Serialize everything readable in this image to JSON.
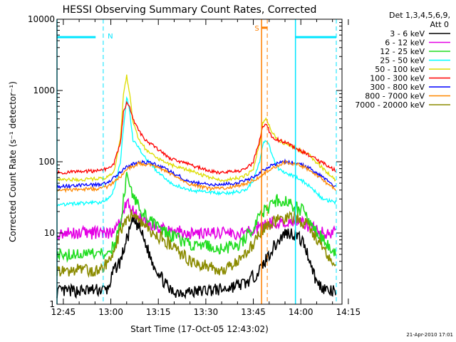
{
  "chart_data": {
    "type": "line",
    "title": "HESSI Observing Summary Count Rates, Corrected",
    "xlabel": "Start Time (17-Oct-05 12:43:02)",
    "ylabel": "Corrected Count Rate (s⁻¹ detector⁻¹)",
    "y_scale": "log",
    "ylim": [
      1,
      10000
    ],
    "xlim_min": [
      -2,
      88
    ],
    "x_ticks": [
      "12:45",
      "13:00",
      "13:15",
      "13:30",
      "13:45",
      "14:00",
      "14:15"
    ],
    "y_ticks": [
      "1",
      "10",
      "100",
      "1000",
      "10000"
    ],
    "legend_header": [
      "Det 1,3,4,5,6,9,",
      "Att 0"
    ],
    "legend_placement": "right",
    "series": [
      {
        "name": "3 - 6 keV",
        "color": "#000000",
        "x": [
          -2,
          14,
          16,
          18,
          20,
          22,
          24,
          26,
          28,
          32,
          34,
          38,
          42,
          46,
          50,
          54,
          58,
          62,
          66,
          70,
          72,
          74,
          76,
          78,
          80,
          84,
          86
        ],
        "y": [
          1.5,
          1.6,
          3,
          4,
          8,
          15,
          12,
          7,
          4,
          2,
          1.5,
          1.5,
          1.5,
          1.6,
          1.6,
          1.8,
          2,
          3,
          6,
          10,
          10,
          9,
          7,
          4,
          2,
          1.5,
          1.5
        ]
      },
      {
        "name": "6 - 12 keV",
        "color": "#e400e4",
        "x": [
          -2,
          14,
          16,
          18,
          20,
          22,
          24,
          28,
          32,
          40,
          50,
          56,
          62,
          66,
          70,
          74,
          78,
          82,
          86
        ],
        "y": [
          10,
          10,
          11,
          14,
          28,
          20,
          16,
          13,
          11,
          10,
          10,
          10,
          12,
          14,
          15,
          15,
          12,
          10,
          10
        ]
      },
      {
        "name": "12 - 25 keV",
        "color": "#22dd22",
        "x": [
          -2,
          14,
          16,
          18,
          19,
          20,
          22,
          24,
          28,
          32,
          40,
          50,
          56,
          60,
          62,
          66,
          68,
          70,
          74,
          76,
          78,
          82,
          86
        ],
        "y": [
          5,
          5,
          7,
          12,
          30,
          60,
          35,
          22,
          14,
          10,
          7,
          6,
          7,
          12,
          18,
          25,
          30,
          28,
          22,
          20,
          14,
          8,
          5
        ]
      },
      {
        "name": "25 - 50 keV",
        "color": "#00ffff",
        "x": [
          -2,
          12,
          14,
          16,
          18,
          19,
          20,
          21,
          22,
          24,
          26,
          30,
          34,
          40,
          46,
          50,
          56,
          58,
          60,
          62,
          63,
          64,
          65,
          66,
          68,
          70,
          74,
          78,
          82,
          86
        ],
        "y": [
          25,
          27,
          30,
          40,
          100,
          300,
          800,
          500,
          200,
          150,
          110,
          70,
          50,
          40,
          37,
          36,
          38,
          42,
          55,
          100,
          180,
          200,
          170,
          120,
          80,
          70,
          60,
          45,
          30,
          27
        ]
      },
      {
        "name": "50 - 100 keV",
        "color": "#dddd00",
        "x": [
          -2,
          12,
          14,
          16,
          18,
          19,
          20,
          21,
          22,
          24,
          26,
          30,
          34,
          40,
          46,
          50,
          56,
          58,
          60,
          62,
          63,
          64,
          65,
          66,
          68,
          70,
          74,
          78,
          82,
          86
        ],
        "y": [
          55,
          58,
          60,
          75,
          200,
          900,
          1600,
          900,
          350,
          200,
          150,
          110,
          90,
          75,
          60,
          55,
          60,
          65,
          80,
          180,
          350,
          400,
          320,
          250,
          200,
          180,
          150,
          120,
          80,
          55
        ]
      },
      {
        "name": "100 - 300 keV",
        "color": "#ff0000",
        "x": [
          -2,
          12,
          14,
          16,
          18,
          19,
          20,
          21,
          22,
          24,
          26,
          30,
          34,
          40,
          46,
          50,
          56,
          58,
          60,
          62,
          63,
          64,
          65,
          66,
          68,
          70,
          74,
          78,
          82,
          86
        ],
        "y": [
          70,
          75,
          80,
          95,
          180,
          500,
          700,
          600,
          400,
          260,
          200,
          150,
          110,
          90,
          75,
          70,
          75,
          80,
          100,
          200,
          320,
          350,
          270,
          220,
          200,
          190,
          150,
          120,
          95,
          75
        ]
      },
      {
        "name": "300 - 800 keV",
        "color": "#0000ff",
        "x": [
          -2,
          12,
          14,
          16,
          18,
          20,
          24,
          28,
          32,
          36,
          40,
          46,
          50,
          54,
          58,
          62,
          66,
          70,
          74,
          78,
          82,
          86
        ],
        "y": [
          45,
          48,
          52,
          60,
          70,
          85,
          100,
          95,
          80,
          65,
          52,
          48,
          48,
          50,
          55,
          70,
          90,
          100,
          95,
          80,
          60,
          45
        ]
      },
      {
        "name": "800 - 7000 keV",
        "color": "#ff8800",
        "x": [
          -2,
          12,
          14,
          16,
          18,
          20,
          24,
          28,
          32,
          36,
          40,
          46,
          50,
          54,
          58,
          62,
          66,
          70,
          74,
          78,
          82,
          86
        ],
        "y": [
          40,
          42,
          45,
          52,
          62,
          78,
          95,
          90,
          75,
          60,
          48,
          42,
          42,
          45,
          50,
          62,
          82,
          98,
          92,
          75,
          55,
          40
        ]
      },
      {
        "name": "7000 - 20000 keV",
        "color": "#8b8b00",
        "x": [
          -2,
          12,
          14,
          16,
          18,
          20,
          22,
          24,
          26,
          28,
          32,
          40,
          50,
          56,
          60,
          62,
          66,
          70,
          72,
          74,
          78,
          82,
          86
        ],
        "y": [
          3,
          3,
          4,
          6,
          10,
          15,
          20,
          16,
          12,
          10,
          8,
          4,
          3,
          4,
          7,
          10,
          14,
          16,
          17,
          16,
          12,
          6,
          3
        ]
      }
    ]
  },
  "annotations": {
    "n_marker": "N",
    "s_marker": "S",
    "timestamp": "21-Apr-2010 17:01"
  }
}
